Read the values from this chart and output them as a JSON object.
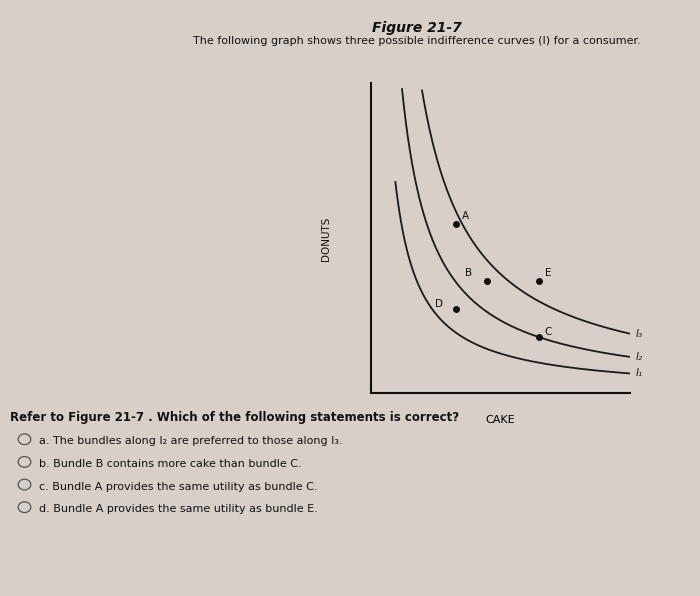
{
  "title": "Figure 21-7",
  "subtitle": "The following graph shows three possible indifference curves (I) for a consumer.",
  "xlabel": "CAKE",
  "ylabel": "DONUTS",
  "bg_color": "#d8cfc8",
  "chart_bg": "#d8cfc8",
  "curve_color": "#1a1a1a",
  "point_color": "#111111",
  "curve_ks": [
    0.3,
    0.55,
    0.9
  ],
  "curve_labels": [
    "I₁",
    "I₂",
    "I₃"
  ],
  "pts": {
    "A": [
      0.28,
      3,
      "A",
      0.02,
      0.05
    ],
    "B": [
      0.38,
      2,
      "B",
      -0.07,
      0.04
    ],
    "D": [
      0.28,
      1.5,
      "D",
      -0.07,
      0.0
    ],
    "E": [
      0.55,
      2,
      "E",
      0.02,
      0.04
    ],
    "C": [
      0.55,
      1.0,
      "C",
      0.02,
      0.0
    ]
  },
  "question": "Refer to Figure 21-7 . Which of the following statements is correct?",
  "options": [
    "a. The bundles along I₂ are preferred to those along I₃.",
    "b. Bundle B contains more cake than bundle C.",
    "c. Bundle A provides the same utility as bundle C.",
    "d. Bundle A provides the same utility as bundle E."
  ]
}
